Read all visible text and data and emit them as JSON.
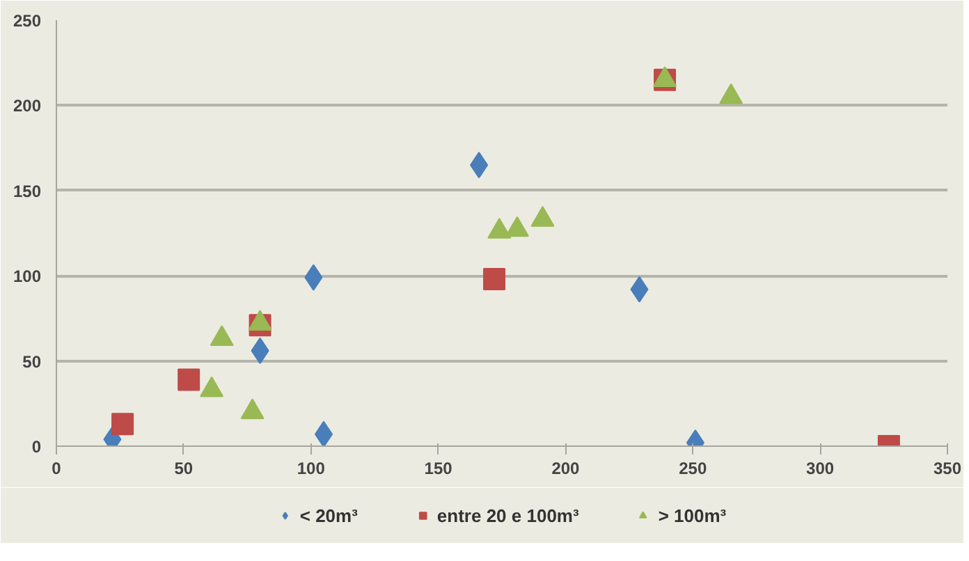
{
  "chart_data": {
    "type": "scatter",
    "xlim": [
      0,
      350
    ],
    "ylim": [
      0,
      250
    ],
    "xticks": [
      0,
      50,
      100,
      150,
      200,
      250,
      300,
      350
    ],
    "yticks": [
      0,
      50,
      100,
      150,
      200,
      250
    ],
    "grid": "y",
    "legend": "bottom",
    "series": [
      {
        "name": "< 20m³",
        "color": "#4a7ebb",
        "marker": "diamond",
        "x": [
          22,
          80,
          101,
          105,
          166,
          229,
          251
        ],
        "values": [
          4,
          56,
          99,
          7,
          165,
          92,
          2
        ]
      },
      {
        "name": "entre 20 e 100m³",
        "color": "#be4b48",
        "marker": "square",
        "x": [
          26,
          52,
          80,
          172,
          239,
          327
        ],
        "values": [
          13,
          39,
          71,
          98,
          215,
          0
        ]
      },
      {
        "name": "> 100m³",
        "color": "#98b954",
        "marker": "triangle",
        "x": [
          61,
          65,
          77,
          80,
          174,
          181,
          191,
          239,
          265
        ],
        "values": [
          33,
          63,
          20,
          72,
          126,
          127,
          133,
          215,
          205
        ]
      }
    ]
  }
}
